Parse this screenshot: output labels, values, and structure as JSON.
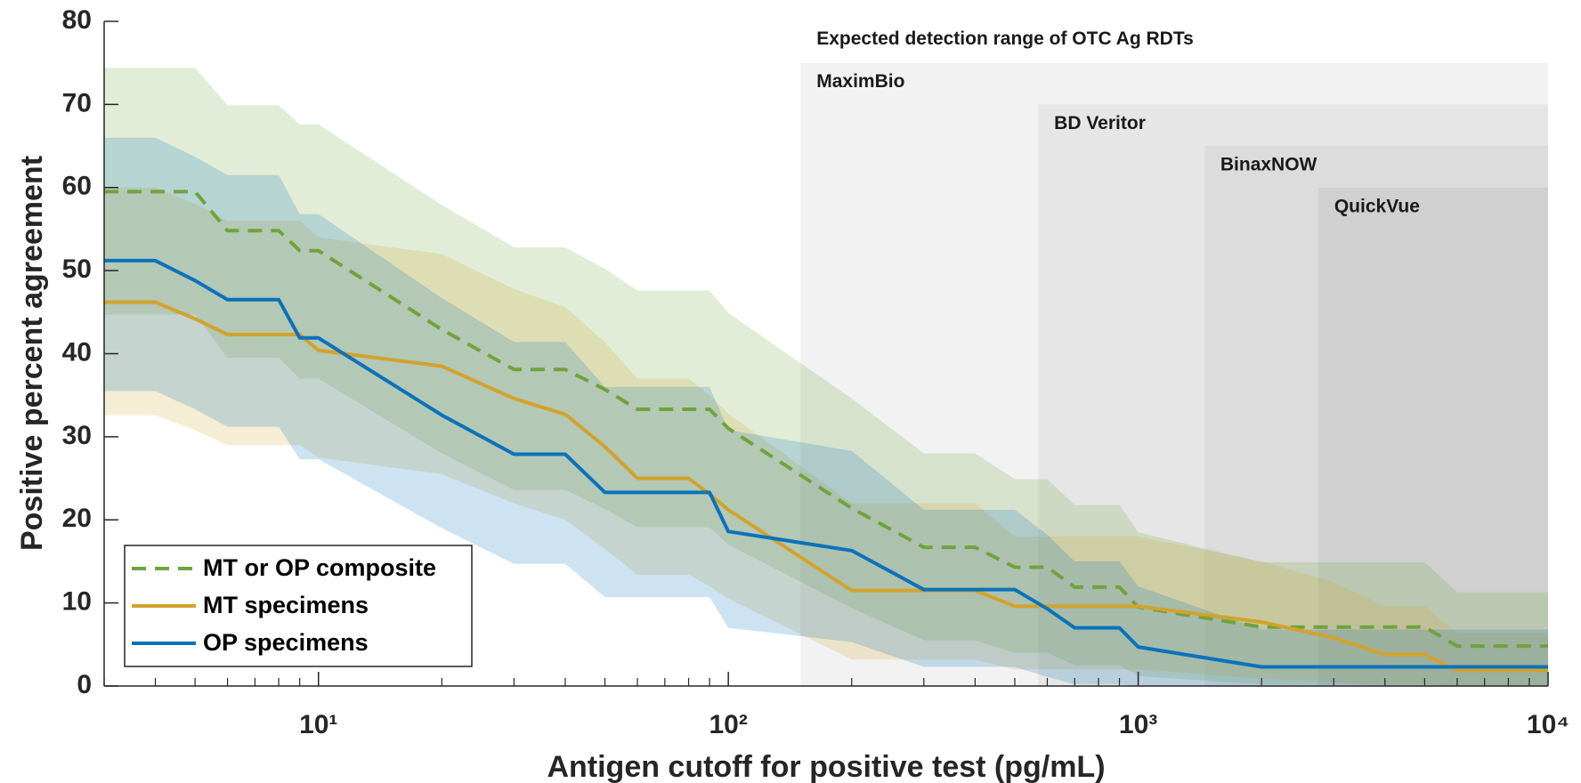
{
  "chart_data": {
    "type": "line",
    "xlabel": "Antigen cutoff for positive test (pg/mL)",
    "ylabel": "Positive percent agreement",
    "xscale": "log",
    "xlim": [
      3,
      10000
    ],
    "ylim": [
      0,
      80
    ],
    "xticks": [
      {
        "value": 10,
        "label": "10¹"
      },
      {
        "value": 100,
        "label": "10²"
      },
      {
        "value": 1000,
        "label": "10³"
      },
      {
        "value": 10000,
        "label": "10⁴"
      }
    ],
    "xminorticks": [
      3,
      4,
      5,
      6,
      7,
      8,
      9,
      20,
      30,
      40,
      50,
      60,
      70,
      80,
      90,
      200,
      300,
      400,
      500,
      600,
      700,
      800,
      900,
      2000,
      3000,
      4000,
      5000,
      6000,
      7000,
      8000,
      9000
    ],
    "yticks": [
      0,
      10,
      20,
      30,
      40,
      50,
      60,
      70,
      80
    ],
    "legend": "lower left",
    "region_title": "Expected detection range of OTC Ag RDTs",
    "regions": [
      {
        "name": "MaximBio",
        "x_start": 150,
        "top": 75,
        "color": "#f2f2f2"
      },
      {
        "name": "BD Veritor",
        "x_start": 570,
        "top": 70,
        "color": "#e6e6e6"
      },
      {
        "name": "BinaxNOW",
        "x_start": 1450,
        "top": 65,
        "color": "#dcdcdc"
      },
      {
        "name": "QuickVue",
        "x_start": 2750,
        "top": 60,
        "color": "#d0d0d0"
      }
    ],
    "x": [
      3,
      4,
      5,
      6,
      7,
      8,
      9,
      10,
      20,
      30,
      40,
      50,
      60,
      70,
      80,
      90,
      100,
      200,
      300,
      400,
      500,
      600,
      700,
      800,
      900,
      1000,
      2000,
      3000,
      4000,
      5000,
      6000,
      7000,
      8000,
      9000,
      10000
    ],
    "series": [
      {
        "name": "MT or OP composite",
        "color": "#6fa33d",
        "dash": true,
        "values": [
          59.5,
          59.5,
          59.5,
          54.8,
          54.8,
          54.8,
          52.4,
          52.4,
          42.9,
          38.1,
          38.1,
          35.7,
          33.3,
          33.3,
          33.3,
          33.3,
          31.0,
          21.4,
          16.7,
          16.7,
          14.3,
          14.3,
          11.9,
          11.9,
          11.9,
          9.5,
          7.1,
          7.1,
          7.1,
          7.1,
          4.8,
          4.8,
          4.8,
          4.8,
          4.8
        ],
        "upper": [
          74.4,
          74.4,
          74.4,
          69.9,
          69.9,
          69.9,
          67.6,
          67.6,
          57.9,
          52.8,
          52.8,
          50.2,
          47.6,
          47.6,
          47.6,
          47.6,
          44.9,
          34.6,
          28,
          28,
          24.9,
          24.9,
          21.8,
          21.8,
          21.8,
          18.5,
          14.9,
          14.9,
          14.9,
          14.9,
          11.3,
          11.3,
          11.3,
          11.3,
          11.3
        ],
        "lower": [
          44.7,
          44.7,
          44.7,
          39.5,
          39.5,
          39.5,
          37,
          37,
          28,
          23.6,
          23.6,
          21.3,
          19.1,
          19.1,
          19.1,
          19.1,
          17,
          9.4,
          5.5,
          5.5,
          4,
          4,
          2.5,
          2.5,
          2.5,
          1.2,
          0.2,
          0.2,
          0.2,
          0.2,
          0,
          0,
          0,
          0,
          0
        ]
      },
      {
        "name": "MT specimens",
        "color": "#d1a32c",
        "dash": false,
        "values": [
          46.2,
          46.2,
          44.2,
          42.3,
          42.3,
          42.3,
          42.3,
          40.4,
          38.5,
          34.6,
          32.7,
          28.8,
          25,
          25,
          25,
          23.1,
          21.2,
          11.5,
          11.5,
          11.5,
          9.6,
          9.6,
          9.6,
          9.6,
          9.6,
          9.6,
          7.7,
          5.8,
          3.8,
          3.8,
          1.9,
          1.9,
          1.9,
          1.9,
          1.9
        ],
        "upper": [
          60,
          60,
          58,
          56,
          56,
          56,
          56,
          54,
          52,
          47.8,
          45.6,
          41.4,
          37,
          37,
          37,
          35,
          32.8,
          22,
          22,
          22,
          18,
          18,
          18,
          18,
          18,
          18,
          15,
          12.5,
          9.6,
          9.6,
          6.4,
          6.4,
          6.4,
          6.4,
          6.4
        ],
        "lower": [
          32.6,
          32.6,
          30.8,
          29,
          29,
          29,
          29,
          27.5,
          25.5,
          22,
          20,
          16.5,
          13.4,
          13.4,
          13.4,
          12,
          10.5,
          3.2,
          3.2,
          3.2,
          2,
          2,
          2,
          2,
          2,
          2,
          0.9,
          0.5,
          0,
          0,
          0,
          0,
          0,
          0,
          0
        ]
      },
      {
        "name": "OP specimens",
        "color": "#0a72ba",
        "dash": false,
        "values": [
          51.2,
          51.2,
          48.8,
          46.5,
          46.5,
          46.5,
          41.9,
          41.9,
          32.6,
          27.9,
          27.9,
          23.3,
          23.3,
          23.3,
          23.3,
          23.3,
          18.6,
          16.3,
          11.6,
          11.6,
          11.6,
          9.3,
          7.0,
          7.0,
          7.0,
          4.7,
          2.3,
          2.3,
          2.3,
          2.3,
          2.3,
          2.3,
          2.3,
          2.3,
          2.3
        ],
        "upper": [
          66,
          66,
          63.7,
          61.5,
          61.5,
          61.5,
          56.8,
          56.8,
          46.7,
          41.4,
          41.4,
          36,
          36,
          36,
          36,
          36,
          30.8,
          28.3,
          21.2,
          21.2,
          21.2,
          18.2,
          15,
          15,
          15,
          12,
          6.8,
          6.8,
          6.8,
          6.8,
          6.8,
          6.8,
          6.8,
          6.8,
          6.8
        ],
        "lower": [
          35.5,
          35.5,
          33.3,
          31.2,
          31.2,
          31.2,
          27.3,
          27.3,
          19,
          14.7,
          14.7,
          10.7,
          10.7,
          10.7,
          10.7,
          10.7,
          7,
          5.3,
          2.3,
          2.3,
          2.3,
          1.1,
          0.2,
          0.2,
          0.2,
          0,
          0,
          0,
          0,
          0,
          0,
          0,
          0,
          0,
          0
        ]
      }
    ]
  }
}
